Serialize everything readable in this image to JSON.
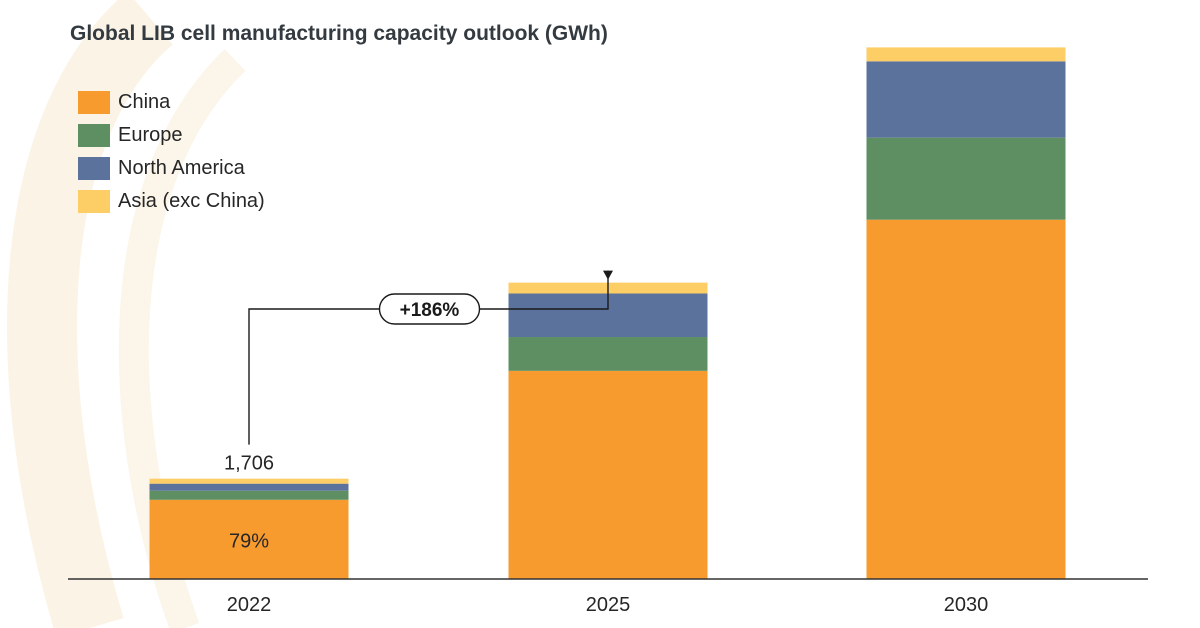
{
  "chart_data": {
    "type": "bar",
    "stacked": true,
    "title": "Global LIB cell manufacturing capacity outlook (GWh)",
    "categories": [
      "2022",
      "2025",
      "2030"
    ],
    "series": [
      {
        "name": "China",
        "color": "#F79B2E",
        "values": [
          1347,
          3540,
          6110
        ]
      },
      {
        "name": "Europe",
        "color": "#5E8F63",
        "values": [
          154,
          575,
          1395
        ]
      },
      {
        "name": "North America",
        "color": "#5B739C",
        "values": [
          120,
          740,
          1298
        ]
      },
      {
        "name": "Asia (exc China)",
        "color": "#FDCD66",
        "values": [
          85,
          185,
          237
        ]
      }
    ],
    "ylim": [
      0,
      9200
    ],
    "xlabel": "",
    "ylabel": "",
    "annotations": {
      "total_2022": "1,706",
      "china_share_2022": "79%",
      "growth": "+186%"
    }
  }
}
